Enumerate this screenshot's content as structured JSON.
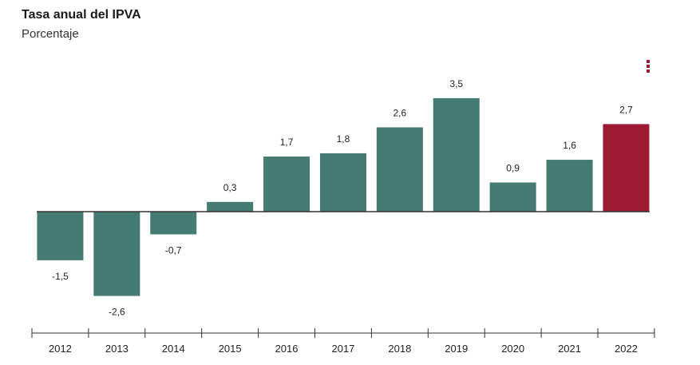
{
  "chart_data": {
    "type": "bar",
    "title": "Tasa anual del IPVA",
    "subtitle": "Porcentaje",
    "categories": [
      "2012",
      "2013",
      "2014",
      "2015",
      "2016",
      "2017",
      "2018",
      "2019",
      "2020",
      "2021",
      "2022"
    ],
    "values": [
      -1.5,
      -2.6,
      -0.7,
      0.3,
      1.7,
      1.8,
      2.6,
      3.5,
      0.9,
      1.6,
      2.7
    ],
    "value_labels": [
      "-1,5",
      "-2,6",
      "-0,7",
      "0,3",
      "1,7",
      "1,8",
      "2,6",
      "3,5",
      "0,9",
      "1,6",
      "2,7"
    ],
    "highlight_index": 10,
    "ylim": [
      -2.6,
      3.5
    ],
    "grid": false,
    "colors": {
      "bar": "#467b73",
      "highlight": "#9c1a32",
      "baseline": "#333333",
      "axis": "#333333"
    }
  },
  "menu_icon": "more-vertical-icon"
}
